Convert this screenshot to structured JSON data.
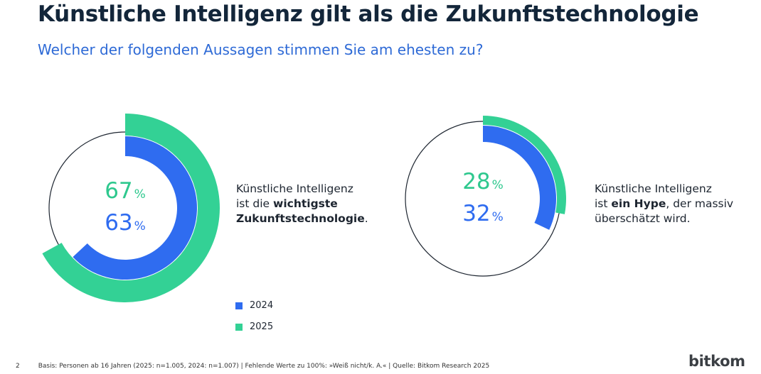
{
  "header": {
    "title": "Künstliche Intelligenz gilt als die Zukunftstechnologie",
    "subtitle": "Welcher der folgenden Aussagen stimmen Sie am ehesten zu?"
  },
  "colors": {
    "y2024": "#2f6cf0",
    "y2025": "#33d195",
    "ring": "#1d2530",
    "pct2025": "#2ec88e",
    "pct2024": "#2f6cf0"
  },
  "chart_data": [
    {
      "type": "pie",
      "title": "Künstliche Intelligenz ist die wichtigste Zukunftstechnologie.",
      "series": [
        {
          "name": "2025",
          "value": 67
        },
        {
          "name": "2024",
          "value": 63
        }
      ],
      "labels": {
        "v2025": "67",
        "v2024": "63",
        "unit": "%"
      }
    },
    {
      "type": "pie",
      "title": "Künstliche Intelligenz ist ein Hype, der massiv überschätzt wird.",
      "series": [
        {
          "name": "2025",
          "value": 28
        },
        {
          "name": "2024",
          "value": 32
        }
      ],
      "labels": {
        "v2025": "28",
        "v2024": "32",
        "unit": "%"
      }
    }
  ],
  "statements": [
    {
      "line1": "Künstliche Intelligenz",
      "line2_pre": "ist die ",
      "line2_bold": "wichtigste",
      "line3_bold": "Zukunftstechnologie",
      "line3_post": "."
    },
    {
      "line1": "Künstliche Intelligenz",
      "line2_pre": "ist ",
      "line2_bold": "ein Hype",
      "line2_post": ", der massiv",
      "line3": "überschätzt wird."
    }
  ],
  "legend": [
    {
      "label": "2024"
    },
    {
      "label": "2025"
    }
  ],
  "footer": {
    "page": "2",
    "note": "Basis: Personen ab 16 Jahren (2025: n=1.005, 2024: n=1.007) | Fehlende Werte zu 100%: »Weiß nicht/k. A.« | Quelle: Bitkom Research 2025",
    "logo": "bitkom"
  }
}
